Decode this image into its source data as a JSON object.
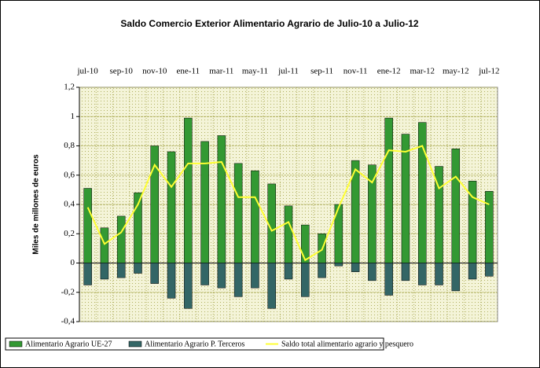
{
  "chart_data": {
    "type": "bar",
    "title": "Saldo Comercio Exterior Alimentario Agrario de Julio-10 a Julio-12",
    "y_label": "Miles de millones de euros",
    "categories": [
      "jul-10",
      null,
      "sep-10",
      null,
      "nov-10",
      null,
      "ene-11",
      null,
      "mar-11",
      null,
      "may-11",
      null,
      "jul-11",
      null,
      "sep-11",
      null,
      "nov-11",
      null,
      "ene-12",
      null,
      "mar-12",
      null,
      "may-12",
      null,
      "jul-12"
    ],
    "series": [
      {
        "name": "Alimentario Agrario UE-27",
        "color": "#339933",
        "type": "bar",
        "values": [
          0.51,
          0.24,
          0.32,
          0.48,
          0.8,
          0.76,
          0.99,
          0.83,
          0.87,
          0.68,
          0.63,
          0.54,
          0.39,
          0.26,
          0.2,
          0.4,
          0.7,
          0.67,
          0.99,
          0.88,
          0.96,
          0.66,
          0.78,
          0.56,
          0.49
        ]
      },
      {
        "name": "Alimentario Agrario P. Terceros",
        "color": "#336666",
        "type": "bar",
        "values": [
          -0.15,
          -0.11,
          -0.1,
          -0.07,
          -0.14,
          -0.24,
          -0.31,
          -0.15,
          -0.17,
          -0.23,
          -0.17,
          -0.31,
          -0.11,
          -0.23,
          -0.1,
          -0.02,
          -0.06,
          -0.12,
          -0.22,
          -0.12,
          -0.15,
          -0.15,
          -0.19,
          -0.11,
          -0.09
        ]
      },
      {
        "name": "Saldo total alimentario agrario y pesquero",
        "color": "#ffff33",
        "type": "line",
        "values": [
          0.38,
          0.13,
          0.21,
          0.4,
          0.67,
          0.52,
          0.68,
          0.68,
          0.69,
          0.45,
          0.45,
          0.22,
          0.28,
          0.02,
          0.09,
          0.38,
          0.64,
          0.55,
          0.77,
          0.76,
          0.8,
          0.51,
          0.59,
          0.45,
          0.4
        ]
      }
    ],
    "ylim": [
      -0.4,
      1.2
    ],
    "yticks": [
      {
        "value": -0.4,
        "label": "-0,4"
      },
      {
        "value": -0.2,
        "label": "-0,2"
      },
      0,
      {
        "value": 0.2,
        "label": "0,2"
      },
      {
        "value": 0.4,
        "label": "0,4"
      },
      {
        "value": 0.6,
        "label": "0,6"
      },
      {
        "value": 0.8,
        "label": "0,8"
      },
      1,
      {
        "value": 1.2,
        "label": "1,2"
      }
    ],
    "grid": true,
    "legend": "bottom"
  }
}
